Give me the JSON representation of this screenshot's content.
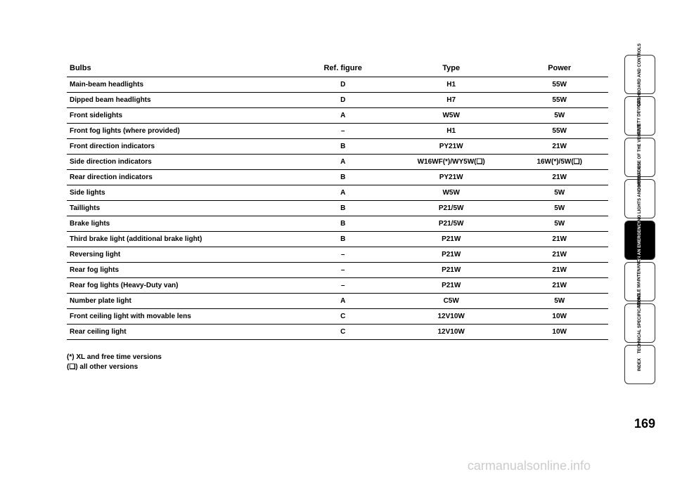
{
  "table": {
    "headers": {
      "bulbs": "Bulbs",
      "ref": "Ref. figure",
      "type": "Type",
      "power": "Power"
    },
    "rows": [
      {
        "bulbs": "Main-beam headlights",
        "ref": "D",
        "type": "H1",
        "power": "55W"
      },
      {
        "bulbs": "Dipped beam headlights",
        "ref": "D",
        "type": "H7",
        "power": "55W"
      },
      {
        "bulbs": "Front sidelights",
        "ref": "A",
        "type": "W5W",
        "power": "5W"
      },
      {
        "bulbs": "Front fog lights (where provided)",
        "ref": "–",
        "type": "H1",
        "power": "55W"
      },
      {
        "bulbs": "Front direction indicators",
        "ref": "B",
        "type": "PY21W",
        "power": "21W"
      },
      {
        "bulbs": "Side direction indicators",
        "ref": "A",
        "type": "W16WF(*)/WY5W(❏)",
        "power": "16W(*)/5W(❏)"
      },
      {
        "bulbs": "Rear direction indicators",
        "ref": "B",
        "type": "PY21W",
        "power": "21W"
      },
      {
        "bulbs": "Side lights",
        "ref": "A",
        "type": "W5W",
        "power": "5W"
      },
      {
        "bulbs": "Taillights",
        "ref": "B",
        "type": "P21/5W",
        "power": "5W"
      },
      {
        "bulbs": "Brake lights",
        "ref": "B",
        "type": "P21/5W",
        "power": "5W"
      },
      {
        "bulbs": "Third brake light (additional brake light)",
        "ref": "B",
        "type": "P21W",
        "power": "21W"
      },
      {
        "bulbs": "Reversing light",
        "ref": "–",
        "type": "P21W",
        "power": "21W"
      },
      {
        "bulbs": "Rear fog lights",
        "ref": "–",
        "type": "P21W",
        "power": "21W"
      },
      {
        "bulbs": "Rear fog lights (Heavy-Duty van)",
        "ref": "–",
        "type": "P21W",
        "power": "21W"
      },
      {
        "bulbs": "Number plate light",
        "ref": "A",
        "type": "C5W",
        "power": "5W"
      },
      {
        "bulbs": "Front ceiling light with movable lens",
        "ref": "C",
        "type": "12V10W",
        "power": "10W"
      },
      {
        "bulbs": "Rear ceiling light",
        "ref": "C",
        "type": "12V10W",
        "power": "10W"
      }
    ]
  },
  "footnotes": {
    "star": "(*)   XL and free time versions",
    "square": "(❏)  all other versions"
  },
  "sideTabs": [
    {
      "label": "DASHBOARD AND CONTROLS",
      "active": false
    },
    {
      "label": "SAFETY DEVICES",
      "active": false
    },
    {
      "label": "CORRECT USE OF THE VEHICLE",
      "active": false
    },
    {
      "label": "WARNING LIGHTS AND MESSAGES",
      "active": false
    },
    {
      "label": "IN AN EMERGENCY",
      "active": true
    },
    {
      "label": "VEHICLE MAINTENANCE",
      "active": false
    },
    {
      "label": "TECHNICAL SPECIFICATIONS",
      "active": false
    },
    {
      "label": "INDEX",
      "active": false
    }
  ],
  "pageNumber": "169",
  "watermark": "carmanualsonline.info"
}
